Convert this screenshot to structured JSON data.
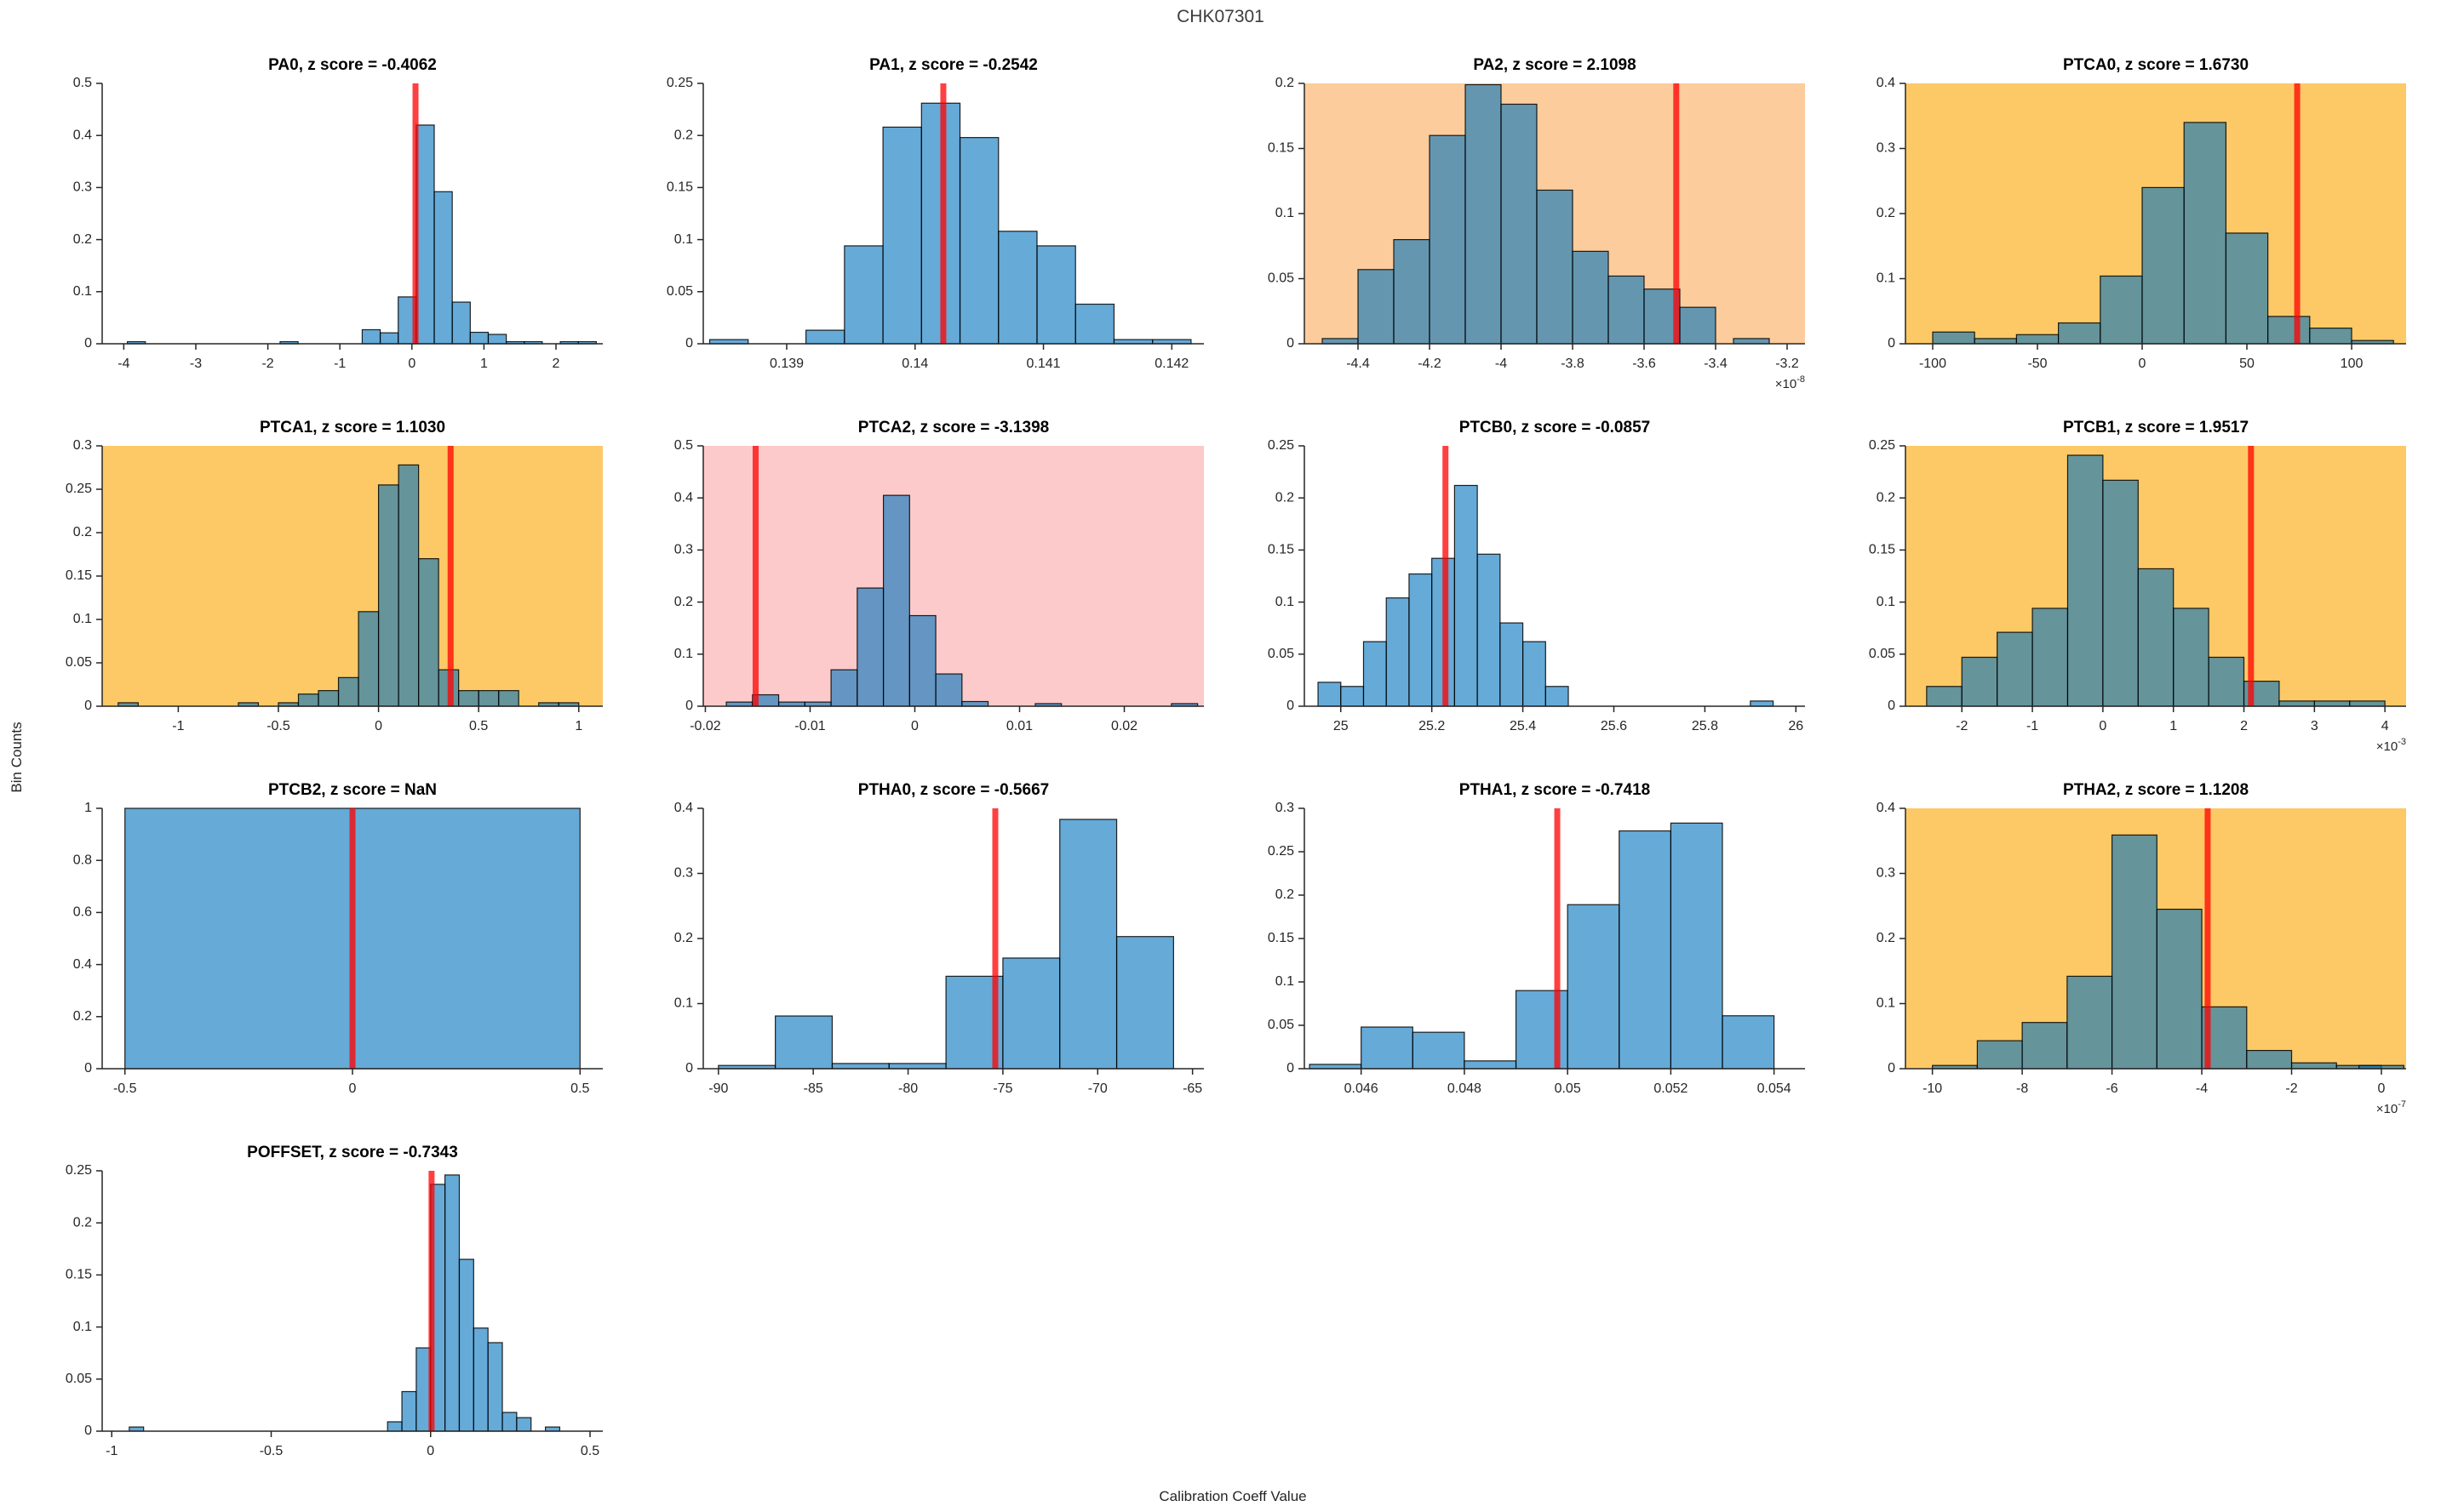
{
  "figure": {
    "title": "CHK07301",
    "xlabel": "Calibration Coeff Value",
    "ylabel": "Bin Counts"
  },
  "colors": {
    "bar_fill": "#0072BD",
    "bar_fill_alpha": 0.6,
    "bar_edge": "#000000",
    "marker_line": "#FF0000",
    "marker_alpha": 0.75,
    "axis": "#262626",
    "bg_white": "#FFFFFF",
    "bg_orange": "#FCCC9C",
    "bg_gold": "#FDC966",
    "bg_pink": "#FCCACA",
    "title_gray": "#3d3d3d"
  },
  "chart_data": [
    {
      "type": "histogram",
      "param": "PA0",
      "z_score": "-0.4062",
      "title": "PA0, z score = -0.4062",
      "bg": "white",
      "xlim": [
        -4.3,
        2.65
      ],
      "ylim": [
        0,
        0.5
      ],
      "bin_width": 0.25,
      "red_x": 0.05,
      "x_exp": null,
      "xticks": [
        -4,
        -3,
        -2,
        -1,
        0,
        1,
        2
      ],
      "xtick_labels": [
        "-4",
        "-3",
        "-2",
        "-1",
        "0",
        "1",
        "2"
      ],
      "yticks": [
        0,
        0.1,
        0.2,
        0.3,
        0.4,
        0.5
      ],
      "ytick_labels": [
        "0",
        "0.1",
        "0.2",
        "0.3",
        "0.4",
        "0.5"
      ],
      "bars": [
        [
          -3.95,
          0.004
        ],
        [
          -1.83,
          0.004
        ],
        [
          -0.69,
          0.027
        ],
        [
          -0.44,
          0.021
        ],
        [
          -0.19,
          0.09
        ],
        [
          0.06,
          0.42
        ],
        [
          0.31,
          0.292
        ],
        [
          0.56,
          0.08
        ],
        [
          0.81,
          0.022
        ],
        [
          1.06,
          0.018
        ],
        [
          1.31,
          0.004
        ],
        [
          1.56,
          0.004
        ],
        [
          2.06,
          0.004
        ],
        [
          2.31,
          0.004
        ]
      ]
    },
    {
      "type": "histogram",
      "param": "PA1",
      "z_score": "-0.2542",
      "title": "PA1, z score = -0.2542",
      "bg": "white",
      "xlim": [
        0.13835,
        0.14225
      ],
      "ylim": [
        0,
        0.25
      ],
      "bin_width": 0.0003,
      "red_x": 0.14022,
      "x_exp": null,
      "xticks": [
        0.139,
        0.14,
        0.141,
        0.142
      ],
      "xtick_labels": [
        "0.139",
        "0.14",
        "0.141",
        "0.142"
      ],
      "yticks": [
        0,
        0.05,
        0.1,
        0.15,
        0.2,
        0.25
      ],
      "ytick_labels": [
        "0",
        "0.05",
        "0.1",
        "0.15",
        "0.2",
        "0.25"
      ],
      "bars": [
        [
          0.1384,
          0.004
        ],
        [
          0.13915,
          0.013
        ],
        [
          0.13945,
          0.094
        ],
        [
          0.13975,
          0.208
        ],
        [
          0.14005,
          0.231
        ],
        [
          0.14035,
          0.198
        ],
        [
          0.14065,
          0.108
        ],
        [
          0.14095,
          0.094
        ],
        [
          0.14125,
          0.038
        ],
        [
          0.14155,
          0.004
        ],
        [
          0.14185,
          0.004
        ]
      ]
    },
    {
      "type": "histogram",
      "param": "PA2",
      "z_score": "2.1098",
      "title": "PA2, z score = 2.1098",
      "bg": "orange",
      "xlim": [
        -4.55,
        -3.15
      ],
      "ylim": [
        0,
        0.2
      ],
      "bin_width": 0.1,
      "red_x": -3.51,
      "x_exp": "-8",
      "xticks": [
        -4.4,
        -4.2,
        -4,
        -3.8,
        -3.6,
        -3.4,
        -3.2
      ],
      "xtick_labels": [
        "-4.4",
        "-4.2",
        "-4",
        "-3.8",
        "-3.6",
        "-3.4",
        "-3.2"
      ],
      "yticks": [
        0,
        0.05,
        0.1,
        0.15,
        0.2
      ],
      "ytick_labels": [
        "0",
        "0.05",
        "0.1",
        "0.15",
        "0.2"
      ],
      "bars": [
        [
          -4.5,
          0.004
        ],
        [
          -4.4,
          0.057
        ],
        [
          -4.3,
          0.08
        ],
        [
          -4.2,
          0.16
        ],
        [
          -4.1,
          0.199
        ],
        [
          -4.0,
          0.184
        ],
        [
          -3.9,
          0.118
        ],
        [
          -3.8,
          0.071
        ],
        [
          -3.7,
          0.052
        ],
        [
          -3.6,
          0.042
        ],
        [
          -3.5,
          0.028
        ],
        [
          -3.35,
          0.004
        ]
      ]
    },
    {
      "type": "histogram",
      "param": "PTCA0",
      "z_score": "1.6730",
      "title": "PTCA0, z score = 1.6730",
      "bg": "gold",
      "xlim": [
        -113,
        126
      ],
      "ylim": [
        0,
        0.4
      ],
      "bin_width": 20,
      "red_x": 74,
      "x_exp": null,
      "xticks": [
        -100,
        -50,
        0,
        50,
        100
      ],
      "xtick_labels": [
        "-100",
        "-50",
        "0",
        "50",
        "100"
      ],
      "yticks": [
        0,
        0.1,
        0.2,
        0.3,
        0.4
      ],
      "ytick_labels": [
        "0",
        "0.1",
        "0.2",
        "0.3",
        "0.4"
      ],
      "bars": [
        [
          -100,
          0.018
        ],
        [
          -80,
          0.008
        ],
        [
          -60,
          0.014
        ],
        [
          -40,
          0.032
        ],
        [
          -20,
          0.104
        ],
        [
          0,
          0.24
        ],
        [
          20,
          0.34
        ],
        [
          40,
          0.17
        ],
        [
          60,
          0.042
        ],
        [
          80,
          0.024
        ],
        [
          100,
          0.005
        ]
      ]
    },
    {
      "type": "histogram",
      "param": "PTCA1",
      "z_score": "1.1030",
      "title": "PTCA1, z score = 1.1030",
      "bg": "gold",
      "xlim": [
        -1.38,
        1.12
      ],
      "ylim": [
        0,
        0.3
      ],
      "bin_width": 0.1,
      "red_x": 0.36,
      "x_exp": null,
      "xticks": [
        -1,
        -0.5,
        0,
        0.5,
        1
      ],
      "xtick_labels": [
        "-1",
        "-0.5",
        "0",
        "0.5",
        "1"
      ],
      "yticks": [
        0,
        0.05,
        0.1,
        0.15,
        0.2,
        0.25,
        0.3
      ],
      "ytick_labels": [
        "0",
        "0.05",
        "0.1",
        "0.15",
        "0.2",
        "0.25",
        "0.3"
      ],
      "bars": [
        [
          -1.3,
          0.004
        ],
        [
          -0.7,
          0.004
        ],
        [
          -0.5,
          0.004
        ],
        [
          -0.4,
          0.014
        ],
        [
          -0.3,
          0.018
        ],
        [
          -0.2,
          0.033
        ],
        [
          -0.1,
          0.109
        ],
        [
          0,
          0.255
        ],
        [
          0.1,
          0.278
        ],
        [
          0.2,
          0.17
        ],
        [
          0.3,
          0.042
        ],
        [
          0.4,
          0.018
        ],
        [
          0.5,
          0.018
        ],
        [
          0.6,
          0.018
        ],
        [
          0.8,
          0.004
        ],
        [
          0.9,
          0.004
        ]
      ]
    },
    {
      "type": "histogram",
      "param": "PTCA2",
      "z_score": "-3.1398",
      "title": "PTCA2, z score = -3.1398",
      "bg": "pink",
      "xlim": [
        -0.0202,
        0.0276
      ],
      "ylim": [
        0,
        0.5
      ],
      "bin_width": 0.0025,
      "red_x": -0.0152,
      "x_exp": null,
      "xticks": [
        -0.02,
        -0.01,
        0,
        0.01,
        0.02
      ],
      "xtick_labels": [
        "-0.02",
        "-0.01",
        "0",
        "0.01",
        "0.02"
      ],
      "yticks": [
        0,
        0.1,
        0.2,
        0.3,
        0.4,
        0.5
      ],
      "ytick_labels": [
        "0",
        "0.1",
        "0.2",
        "0.3",
        "0.4",
        "0.5"
      ],
      "bars": [
        [
          -0.018,
          0.008
        ],
        [
          -0.0155,
          0.022
        ],
        [
          -0.013,
          0.008
        ],
        [
          -0.0105,
          0.008
        ],
        [
          -0.008,
          0.07
        ],
        [
          -0.0055,
          0.227
        ],
        [
          -0.003,
          0.405
        ],
        [
          -0.0005,
          0.174
        ],
        [
          0.002,
          0.062
        ],
        [
          0.0045,
          0.009
        ],
        [
          0.0115,
          0.005
        ],
        [
          0.0245,
          0.005
        ]
      ]
    },
    {
      "type": "histogram",
      "param": "PTCB0",
      "z_score": "-0.0857",
      "title": "PTCB0, z score = -0.0857",
      "bg": "white",
      "xlim": [
        24.92,
        26.02
      ],
      "ylim": [
        0,
        0.25
      ],
      "bin_width": 0.05,
      "red_x": 25.23,
      "x_exp": null,
      "xticks": [
        25,
        25.2,
        25.4,
        25.6,
        25.8,
        26
      ],
      "xtick_labels": [
        "25",
        "25.2",
        "25.4",
        "25.6",
        "25.8",
        "26"
      ],
      "yticks": [
        0,
        0.05,
        0.1,
        0.15,
        0.2,
        0.25
      ],
      "ytick_labels": [
        "0",
        "0.05",
        "0.1",
        "0.15",
        "0.2",
        "0.25"
      ],
      "bars": [
        [
          24.95,
          0.023
        ],
        [
          25.0,
          0.019
        ],
        [
          25.05,
          0.062
        ],
        [
          25.1,
          0.104
        ],
        [
          25.15,
          0.127
        ],
        [
          25.2,
          0.142
        ],
        [
          25.25,
          0.212
        ],
        [
          25.3,
          0.146
        ],
        [
          25.35,
          0.08
        ],
        [
          25.4,
          0.062
        ],
        [
          25.45,
          0.019
        ],
        [
          25.9,
          0.005
        ]
      ]
    },
    {
      "type": "histogram",
      "param": "PTCB1",
      "z_score": "1.9517",
      "title": "PTCB1, z score = 1.9517",
      "bg": "gold",
      "xlim": [
        -2.8,
        4.3
      ],
      "ylim": [
        0,
        0.25
      ],
      "bin_width": 0.5,
      "red_x": 2.1,
      "x_exp": "-3",
      "xticks": [
        -2,
        -1,
        0,
        1,
        2,
        3,
        4
      ],
      "xtick_labels": [
        "-2",
        "-1",
        "0",
        "1",
        "2",
        "3",
        "4"
      ],
      "yticks": [
        0,
        0.05,
        0.1,
        0.15,
        0.2,
        0.25
      ],
      "ytick_labels": [
        "0",
        "0.05",
        "0.1",
        "0.15",
        "0.2",
        "0.25"
      ],
      "bars": [
        [
          -2.5,
          0.019
        ],
        [
          -2,
          0.047
        ],
        [
          -1.5,
          0.071
        ],
        [
          -1,
          0.094
        ],
        [
          -0.5,
          0.241
        ],
        [
          0,
          0.217
        ],
        [
          0.5,
          0.132
        ],
        [
          1,
          0.094
        ],
        [
          1.5,
          0.047
        ],
        [
          2,
          0.024
        ],
        [
          2.5,
          0.005
        ],
        [
          3,
          0.005
        ],
        [
          3.5,
          0.005
        ]
      ]
    },
    {
      "type": "histogram",
      "param": "PTCB2",
      "z_score": "NaN",
      "title": "PTCB2, z score = NaN",
      "bg": "white",
      "xlim": [
        -0.55,
        0.55
      ],
      "ylim": [
        0,
        1
      ],
      "bin_width": 1,
      "red_x": 0,
      "x_exp": null,
      "xticks": [
        -0.5,
        0,
        0.5
      ],
      "xtick_labels": [
        "-0.5",
        "0",
        "0.5"
      ],
      "yticks": [
        0,
        0.2,
        0.4,
        0.6,
        0.8,
        1
      ],
      "ytick_labels": [
        "0",
        "0.2",
        "0.4",
        "0.6",
        "0.8",
        "1"
      ],
      "bars": [
        [
          -0.5,
          1
        ]
      ]
    },
    {
      "type": "histogram",
      "param": "PTHA0",
      "z_score": "-0.5667",
      "title": "PTHA0, z score = -0.5667",
      "bg": "white",
      "xlim": [
        -90.8,
        -64.4
      ],
      "ylim": [
        0,
        0.4
      ],
      "bin_width": 3,
      "red_x": -75.4,
      "x_exp": null,
      "xticks": [
        -90,
        -85,
        -80,
        -75,
        -70,
        -65
      ],
      "xtick_labels": [
        "-90",
        "-85",
        "-80",
        "-75",
        "-70",
        "-65"
      ],
      "yticks": [
        0,
        0.1,
        0.2,
        0.3,
        0.4
      ],
      "ytick_labels": [
        "0",
        "0.1",
        "0.2",
        "0.3",
        "0.4"
      ],
      "bars": [
        [
          -90,
          0.005
        ],
        [
          -87,
          0.081
        ],
        [
          -84,
          0.008
        ],
        [
          -81,
          0.008
        ],
        [
          -78,
          0.142
        ],
        [
          -75,
          0.17
        ],
        [
          -72,
          0.383
        ],
        [
          -69,
          0.203
        ]
      ]
    },
    {
      "type": "histogram",
      "param": "PTHA1",
      "z_score": "-0.7418",
      "title": "PTHA1, z score = -0.7418",
      "bg": "white",
      "xlim": [
        0.0449,
        0.0546
      ],
      "ylim": [
        0,
        0.3
      ],
      "bin_width": 0.001,
      "red_x": 0.0498,
      "x_exp": null,
      "xticks": [
        0.046,
        0.048,
        0.05,
        0.052,
        0.054
      ],
      "xtick_labels": [
        "0.046",
        "0.048",
        "0.05",
        "0.052",
        "0.054"
      ],
      "yticks": [
        0,
        0.05,
        0.1,
        0.15,
        0.2,
        0.25,
        0.3
      ],
      "ytick_labels": [
        "0",
        "0.05",
        "0.1",
        "0.15",
        "0.2",
        "0.25",
        "0.3"
      ],
      "bars": [
        [
          0.045,
          0.005
        ],
        [
          0.046,
          0.048
        ],
        [
          0.047,
          0.042
        ],
        [
          0.048,
          0.009
        ],
        [
          0.049,
          0.09
        ],
        [
          0.05,
          0.189
        ],
        [
          0.051,
          0.274
        ],
        [
          0.052,
          0.283
        ],
        [
          0.053,
          0.061
        ]
      ]
    },
    {
      "type": "histogram",
      "param": "PTHA2",
      "z_score": "1.1208",
      "title": "PTHA2, z score = 1.1208",
      "bg": "gold",
      "xlim": [
        -10.6,
        0.55
      ],
      "ylim": [
        0,
        0.4
      ],
      "bin_width": 1,
      "red_x": -3.87,
      "x_exp": "-7",
      "xticks": [
        -10,
        -8,
        -6,
        -4,
        -2,
        0
      ],
      "xtick_labels": [
        "-10",
        "-8",
        "-6",
        "-4",
        "-2",
        "0"
      ],
      "yticks": [
        0,
        0.1,
        0.2,
        0.3,
        0.4
      ],
      "ytick_labels": [
        "0",
        "0.1",
        "0.2",
        "0.3",
        "0.4"
      ],
      "bars": [
        [
          -10,
          0.005
        ],
        [
          -9,
          0.043
        ],
        [
          -8,
          0.071
        ],
        [
          -7,
          0.142
        ],
        [
          -6,
          0.359
        ],
        [
          -5,
          0.245
        ],
        [
          -4,
          0.095
        ],
        [
          -3,
          0.028
        ],
        [
          -2,
          0.009
        ],
        [
          -1,
          0.005
        ],
        [
          -0.5,
          0.005
        ]
      ]
    },
    {
      "type": "histogram",
      "param": "POFFSET",
      "z_score": "-0.7343",
      "title": "POFFSET, z score = -0.7343",
      "bg": "white",
      "xlim": [
        -1.03,
        0.54
      ],
      "ylim": [
        0,
        0.25
      ],
      "bin_width": 0.045,
      "red_x": 0.003,
      "x_exp": null,
      "xticks": [
        -1,
        -0.5,
        0,
        0.5
      ],
      "xtick_labels": [
        "-1",
        "-0.5",
        "0",
        "0.5"
      ],
      "yticks": [
        0,
        0.05,
        0.1,
        0.15,
        0.2,
        0.25
      ],
      "ytick_labels": [
        "0",
        "0.05",
        "0.1",
        "0.15",
        "0.2",
        "0.25"
      ],
      "bars": [
        [
          -0.945,
          0.004
        ],
        [
          -0.135,
          0.009
        ],
        [
          -0.09,
          0.038
        ],
        [
          -0.045,
          0.08
        ],
        [
          0,
          0.237
        ],
        [
          0.045,
          0.246
        ],
        [
          0.09,
          0.165
        ],
        [
          0.135,
          0.099
        ],
        [
          0.18,
          0.085
        ],
        [
          0.225,
          0.018
        ],
        [
          0.27,
          0.013
        ],
        [
          0.36,
          0.004
        ]
      ]
    }
  ]
}
